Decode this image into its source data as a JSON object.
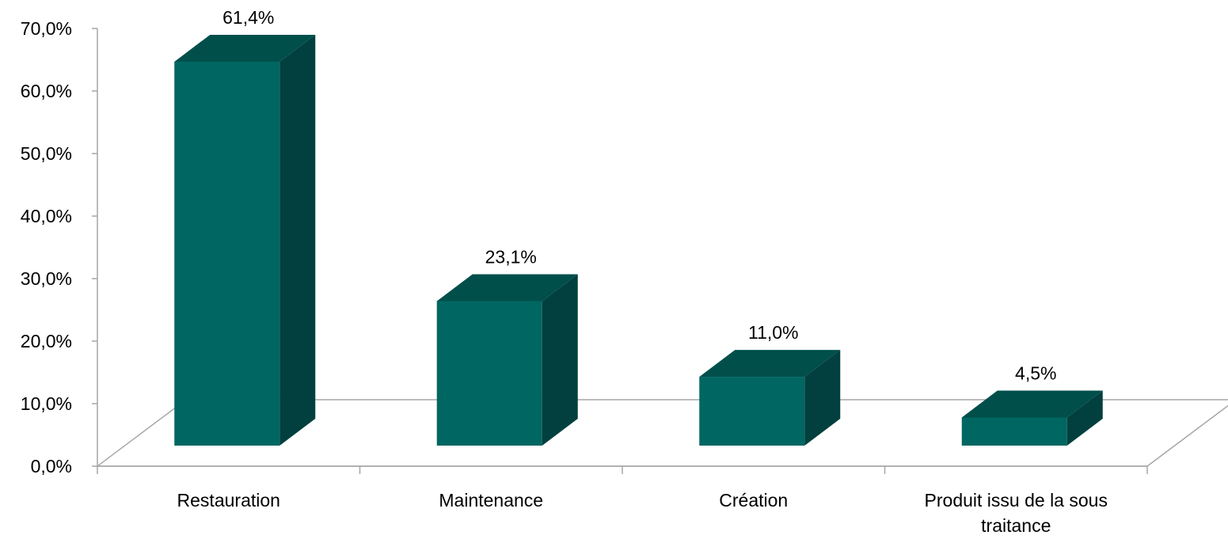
{
  "chart_data": {
    "type": "bar",
    "style": "3d-column",
    "categories": [
      "Restauration",
      "Maintenance",
      "Création",
      "Produit issu de la sous traitance"
    ],
    "values": [
      61.4,
      23.1,
      11.0,
      4.5
    ],
    "data_labels": [
      "61,4%",
      "23,1%",
      "11,0%",
      "4,5%"
    ],
    "y_ticks": [
      "0,0%",
      "10,0%",
      "20,0%",
      "30,0%",
      "40,0%",
      "50,0%",
      "60,0%",
      "70,0%"
    ],
    "ylim": [
      0,
      70
    ],
    "title": "",
    "xlabel": "",
    "ylabel": "",
    "grid": false,
    "legend": "none",
    "colors": {
      "front": "#006661",
      "side": "#01403E",
      "top": "#004F4B",
      "axis": "#A6A6A6"
    }
  }
}
